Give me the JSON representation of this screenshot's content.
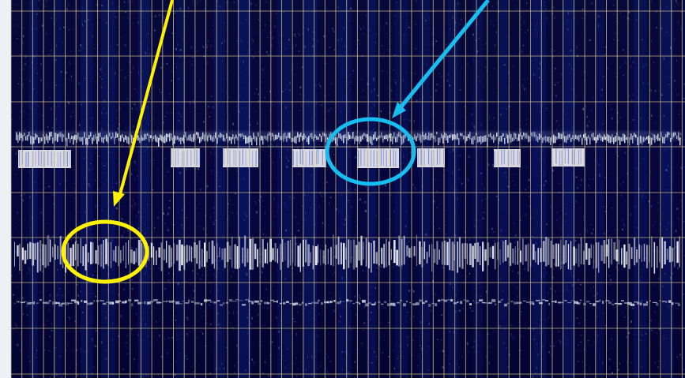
{
  "colors": {
    "background": "#02033f",
    "grid_line": "#e6d28a",
    "signal": "#dff2ff",
    "yellow_annotation": "#fff200",
    "cyan_annotation": "#16bff0",
    "page_frame": "#eef0f6"
  },
  "annotations": [
    {
      "name": "yellow-callout",
      "color": "yellow",
      "shape": "ellipse-with-arrow"
    },
    {
      "name": "cyan-callout",
      "color": "cyan",
      "shape": "ellipse-with-arrow"
    }
  ]
}
